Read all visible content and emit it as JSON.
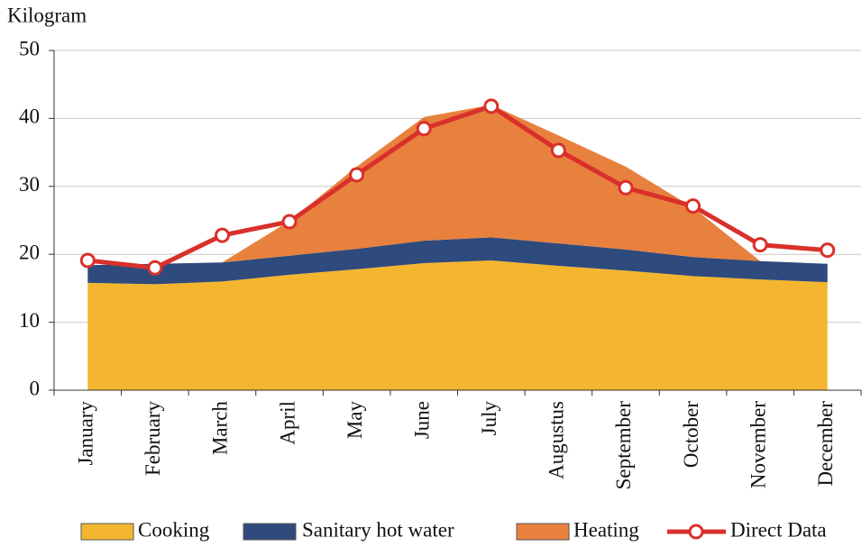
{
  "chart_data": {
    "type": "area",
    "y_label": "Kilogram",
    "categories": [
      "January",
      "February",
      "March",
      "April",
      "May",
      "June",
      "July",
      "Augustus",
      "September",
      "October",
      "November",
      "December"
    ],
    "series": [
      {
        "name": "Cooking",
        "type": "area",
        "color": "#f4b62f",
        "values": [
          15.8,
          15.6,
          16.0,
          17.0,
          17.8,
          18.7,
          19.1,
          18.3,
          17.6,
          16.8,
          16.3,
          15.9
        ]
      },
      {
        "name": "Sanitary hot water",
        "type": "area",
        "color": "#2f4a7c",
        "values": [
          2.6,
          3.0,
          2.8,
          2.8,
          3.0,
          3.3,
          3.4,
          3.3,
          3.1,
          2.8,
          2.7,
          2.7
        ]
      },
      {
        "name": "Heating",
        "type": "area",
        "color": "#e8803e",
        "values": [
          0,
          0,
          0,
          5.1,
          12.1,
          18.2,
          19.5,
          15.9,
          12.2,
          7.3,
          0,
          0
        ]
      },
      {
        "name": "Direct Data",
        "type": "line",
        "color": "#d9302b",
        "values": [
          19.1,
          18.0,
          22.8,
          24.8,
          31.7,
          38.5,
          41.8,
          35.3,
          29.8,
          27.1,
          21.4,
          20.6
        ]
      }
    ],
    "ylim": [
      0,
      50
    ],
    "yticks": [
      0,
      10,
      20,
      30,
      40,
      50
    ],
    "grid": true,
    "legend": "bottom"
  }
}
